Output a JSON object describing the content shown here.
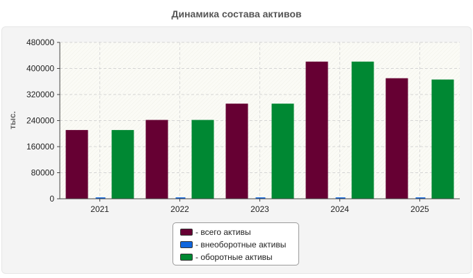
{
  "title": "Динамика состава активов",
  "chart_data": {
    "type": "bar",
    "title": "Динамика состава активов",
    "ylabel": "тыс.",
    "xlabel": "",
    "categories": [
      "2021",
      "2022",
      "2023",
      "2024",
      "2025"
    ],
    "ylim": [
      0,
      480000
    ],
    "yticks": [
      0,
      80000,
      160000,
      240000,
      320000,
      400000,
      480000
    ],
    "ytick_labels": [
      "0",
      "80000",
      "160000",
      "240000",
      "320000",
      "400000",
      "480000"
    ],
    "grid": true,
    "legend_position": "bottom",
    "series": [
      {
        "name": "- всего активы",
        "color": "#660033",
        "values": [
          211000,
          242000,
          292000,
          421000,
          370000
        ]
      },
      {
        "name": "- внеоборотные активы",
        "color": "#1166dd",
        "values": [
          1800,
          2000,
          2200,
          2600,
          4200
        ]
      },
      {
        "name": "- оборотные активы",
        "color": "#008833",
        "values": [
          211000,
          242000,
          292000,
          421000,
          366000
        ]
      }
    ]
  }
}
